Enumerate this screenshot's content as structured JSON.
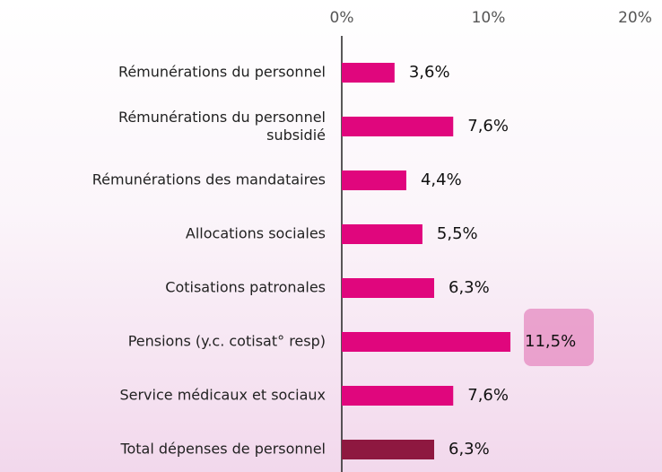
{
  "chart_data": {
    "type": "hbar",
    "categories": [
      "Rémunérations du personnel",
      "Rémunérations du personnel\nsubsidié",
      "Rémunérations des mandataires",
      "Allocations sociales",
      "Cotisations patronales",
      "Pensions (y.c. cotisat° resp)",
      "Service médicaux et sociaux",
      "Total dépenses de personnel"
    ],
    "values": [
      3.6,
      7.6,
      4.4,
      5.5,
      6.3,
      11.5,
      7.6,
      6.3
    ],
    "value_labels": [
      "3,6%",
      "7,6%",
      "4,4%",
      "5,5%",
      "6,3%",
      "11,5%",
      "7,6%",
      "6,3%"
    ],
    "colors": [
      "#e0067d",
      "#e0067d",
      "#e0067d",
      "#e0067d",
      "#e0067d",
      "#e0067d",
      "#e0067d",
      "#8e1840"
    ],
    "xlim": [
      0,
      20
    ],
    "xticks": [
      {
        "value": 0,
        "label": "0%"
      },
      {
        "value": 10,
        "label": "10%"
      },
      {
        "value": 20,
        "label": "20%"
      }
    ]
  }
}
